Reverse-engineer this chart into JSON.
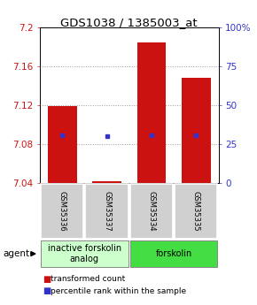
{
  "title": "GDS1038 / 1385003_at",
  "samples": [
    "GSM35336",
    "GSM35337",
    "GSM35334",
    "GSM35335"
  ],
  "bar_bottoms": [
    7.04,
    7.04,
    7.04,
    7.04
  ],
  "bar_tops": [
    7.119,
    7.042,
    7.185,
    7.148
  ],
  "blue_dot_values": [
    7.089,
    7.088,
    7.089,
    7.089
  ],
  "ylim": [
    7.04,
    7.2
  ],
  "yticks_left": [
    7.04,
    7.08,
    7.12,
    7.16,
    7.2
  ],
  "ytick_left_labels": [
    "7.04",
    "7.08",
    "7.12",
    "7.16",
    "7.2"
  ],
  "yticks_right": [
    0,
    25,
    50,
    75,
    100
  ],
  "ytick_right_labels": [
    "0",
    "25",
    "50",
    "75",
    "100%"
  ],
  "bar_color": "#cc1111",
  "dot_color": "#3333cc",
  "bar_width": 0.65,
  "groups": [
    {
      "label": "inactive forskolin\nanalog",
      "indices": [
        0,
        1
      ],
      "color": "#ccffcc"
    },
    {
      "label": "forskolin",
      "indices": [
        2,
        3
      ],
      "color": "#44dd44"
    }
  ],
  "legend_red_label": "transformed count",
  "legend_blue_label": "percentile rank within the sample",
  "agent_label": "agent",
  "grid_color": "#999999",
  "title_fontsize": 9.5,
  "tick_fontsize": 7.5,
  "sample_fontsize": 6,
  "group_fontsize": 7,
  "legend_fontsize": 6.5
}
